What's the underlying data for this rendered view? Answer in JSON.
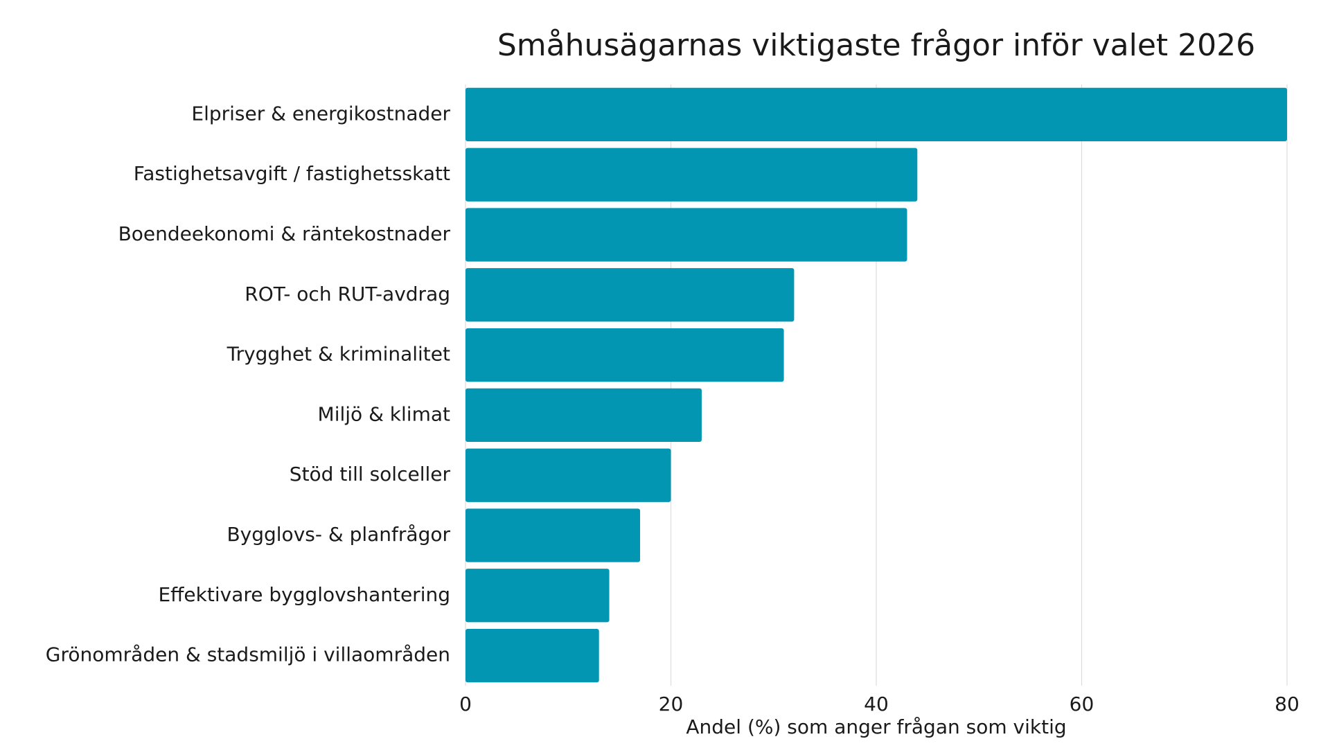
{
  "chart_data": {
    "type": "barh",
    "title": "Småhusägarnas viktigaste frågor inför valet 2026",
    "xlabel": "Andel (%) som anger frågan som viktig",
    "categories": [
      "Elpriser & energikostnader",
      "Fastighetsavgift / fastighetsskatt",
      "Boendeekonomi & räntekostnader",
      "ROT- och RUT-avdrag",
      "Trygghet & kriminalitet",
      "Miljö & klimat",
      "Stöd till solceller",
      "Bygglovs- & planfrågor",
      "Effektivare bygglovshantering",
      "Grönområden & stadsmiljö i villaområden"
    ],
    "values": [
      80,
      44,
      43,
      32,
      31,
      23,
      20,
      17,
      14,
      13
    ],
    "color": "#0396b3",
    "xlim": [
      0,
      80
    ],
    "xticks": [
      0,
      20,
      40,
      60,
      80
    ],
    "grid": true
  }
}
